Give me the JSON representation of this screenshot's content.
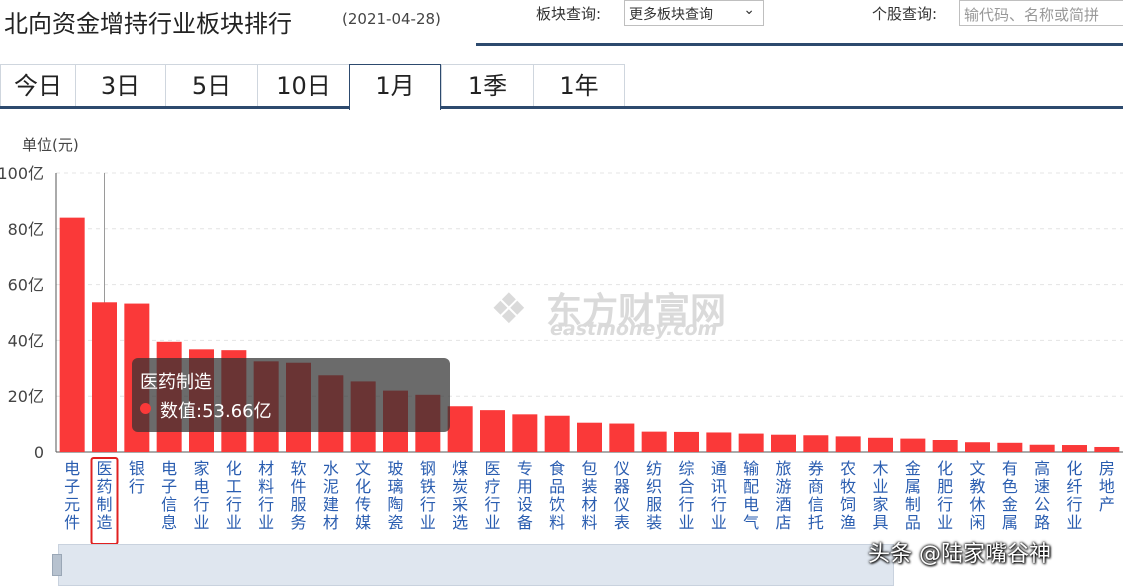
{
  "header": {
    "title": "北向资金增持行业板块排行",
    "date": "(2021-04-28)",
    "sector_query_label": "板块查询:",
    "sector_select_value": "更多板块查询",
    "stock_query_label": "个股查询:",
    "stock_input_placeholder": "输代码、名称或简拼"
  },
  "tabs": [
    {
      "label": "今日",
      "active": false
    },
    {
      "label": "3日",
      "active": false
    },
    {
      "label": "5日",
      "active": false
    },
    {
      "label": "10日",
      "active": false
    },
    {
      "label": "1月",
      "active": true
    },
    {
      "label": "1季",
      "active": false
    },
    {
      "label": "1年",
      "active": false
    }
  ],
  "unit_label": "单位(元)",
  "watermark": {
    "cn": "东方财富网",
    "en": "eastmoney.com"
  },
  "tooltip": {
    "name": "医药制造",
    "value_text": "数值:53.66亿"
  },
  "credit": "头条 @陆家嘴谷神",
  "colors": {
    "bar": "#fa3939",
    "accent": "#2d4a6e",
    "highlight_box": "#e02020"
  },
  "chart_data": {
    "type": "bar",
    "title": "",
    "xlabel": "",
    "ylabel": "单位(元)",
    "ylim": [
      0,
      100
    ],
    "y_ticks": [
      "0",
      "20亿",
      "40亿",
      "60亿",
      "80亿",
      "100亿"
    ],
    "y_tick_values": [
      0,
      20,
      40,
      60,
      80,
      100
    ],
    "grid": true,
    "highlighted_category": "医药制造",
    "categories": [
      "电子元件",
      "医药制造",
      "银行",
      "电子信息",
      "家电行业",
      "化工行业",
      "材料行业",
      "软件服务",
      "水泥建材",
      "文化传媒",
      "玻璃陶瓷",
      "钢铁行业",
      "煤炭采选",
      "医疗行业",
      "专用设备",
      "食品饮料",
      "包装材料",
      "仪器仪表",
      "纺织服装",
      "综合行业",
      "通讯行业",
      "输配电气",
      "旅游酒店",
      "券商信托",
      "农牧饲渔",
      "木业家具",
      "金属制品",
      "化肥行业",
      "文教休闲",
      "有色金属",
      "高速公路",
      "化纤行业",
      "房地产"
    ],
    "values": [
      84.0,
      53.66,
      53.2,
      39.5,
      36.8,
      36.5,
      32.5,
      32.0,
      27.5,
      25.3,
      22.0,
      20.5,
      16.4,
      15.0,
      13.5,
      13.0,
      10.5,
      10.2,
      7.3,
      7.2,
      7.0,
      6.6,
      6.2,
      6.0,
      5.6,
      5.1,
      4.8,
      4.3,
      3.5,
      3.3,
      2.6,
      2.5,
      1.8
    ]
  }
}
